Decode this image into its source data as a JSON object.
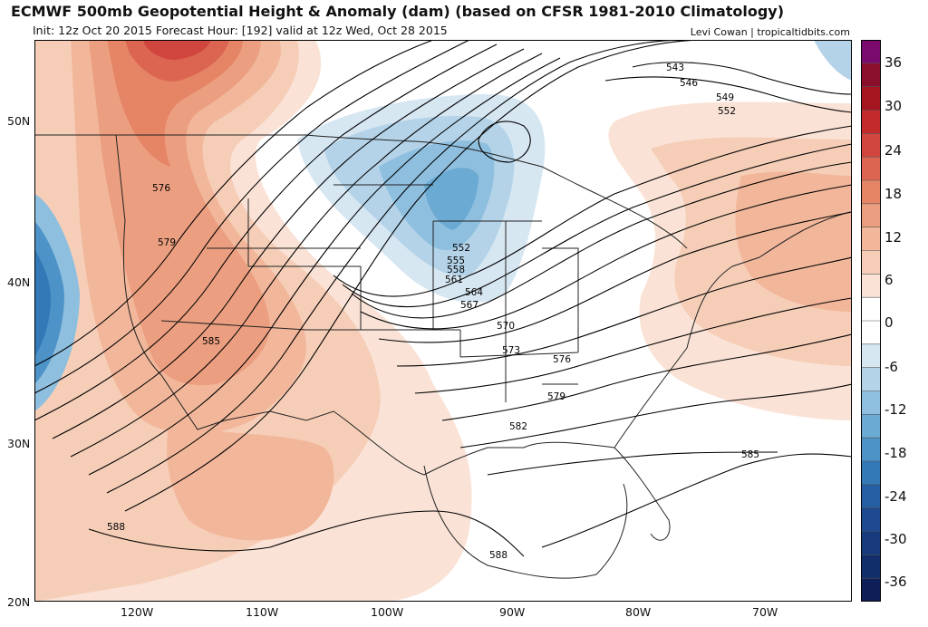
{
  "header": {
    "title": "ECMWF 500mb Geopotential Height & Anomaly (dam) (based on CFSR 1981-2010 Climatology)",
    "subtitle": "Init: 12z Oct 20 2015   Forecast Hour: [192]   valid at 12z Wed, Oct 28 2015",
    "credit": "Levi Cowan | tropicaltidbits.com"
  },
  "axes": {
    "lat_labels": [
      "50N",
      "40N",
      "30N",
      "20N"
    ],
    "lon_labels": [
      "120W",
      "110W",
      "100W",
      "90W",
      "80W",
      "70W"
    ]
  },
  "colorbar": {
    "labels": [
      "36",
      "30",
      "24",
      "18",
      "12",
      "6",
      "0",
      "-6",
      "-12",
      "-18",
      "-24",
      "-30",
      "-36"
    ],
    "colors": [
      "#7a0a6e",
      "#8a0f2c",
      "#a5151f",
      "#c22a2c",
      "#d0463f",
      "#db6550",
      "#e58566",
      "#ec9f80",
      "#f2b79b",
      "#f6ceb8",
      "#fae3d6",
      "#ffffff",
      "#ffffff",
      "#d7e7f2",
      "#b4d3e9",
      "#8fbfdf",
      "#6aaad3",
      "#4d93c8",
      "#3379b8",
      "#255ea3",
      "#1d4a90",
      "#173a7c",
      "#112d6a",
      "#0d1f56"
    ]
  },
  "contour_labels": [
    "543",
    "546",
    "549",
    "552",
    "552",
    "555",
    "558",
    "561",
    "564",
    "567",
    "570",
    "573",
    "576",
    "576",
    "579",
    "579",
    "582",
    "585",
    "585",
    "588",
    "588"
  ]
}
